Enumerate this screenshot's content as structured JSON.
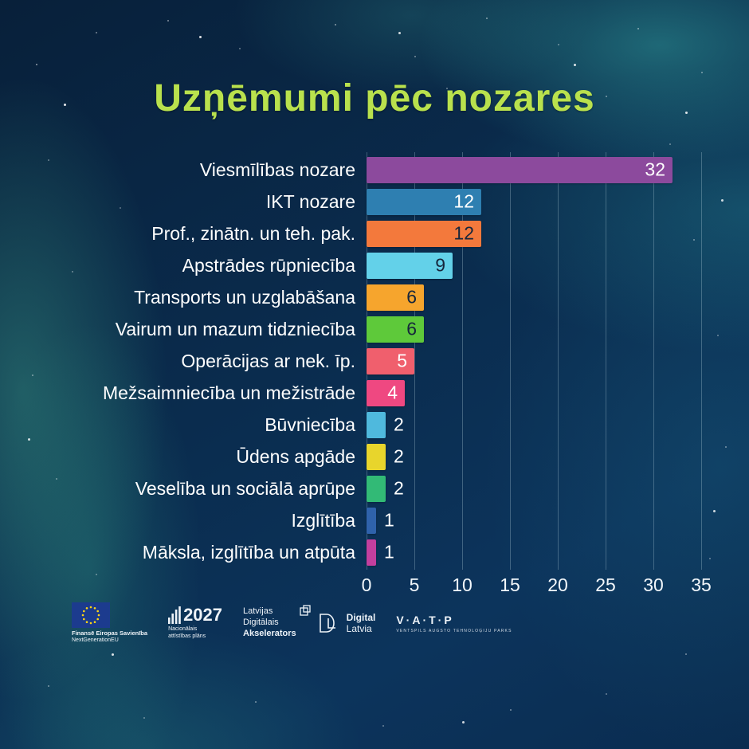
{
  "page": {
    "title": "Uzņēmumi pēc nozares"
  },
  "theme": {
    "background": "#0a2c4e",
    "title_color": "#b9e14d",
    "label_color": "#ffffff",
    "gridline_color": "rgba(190,215,225,0.30)"
  },
  "chart_data": {
    "type": "bar",
    "orientation": "horizontal",
    "title": "Uzņēmumi pēc nozares",
    "categories": [
      "Viesmīlības nozare",
      "IKT nozare",
      "Prof., zinātn. un teh. pak.",
      "Apstrādes rūpniecība",
      "Transports un uzglabāšana",
      "Vairum un mazum tidzniecība",
      "Operācijas ar nek. īp.",
      "Mežsaimniecība un mežistrāde",
      "Būvniecība",
      "Ūdens apgāde",
      "Veselība un sociālā aprūpe",
      "Izglītība",
      "Māksla, izglītība un atpūta"
    ],
    "values": [
      32,
      12,
      12,
      9,
      6,
      6,
      5,
      4,
      2,
      2,
      2,
      1,
      1
    ],
    "bar_colors": [
      "#8c4a9d",
      "#2e7fb1",
      "#f3793c",
      "#63d1e9",
      "#f6a52d",
      "#5ec93a",
      "#f05f6d",
      "#ef4881",
      "#4fb9dd",
      "#e8d52c",
      "#32ba76",
      "#2f62ab",
      "#c33f9e"
    ],
    "value_label_colors": [
      "#ffffff",
      "#ffffff",
      "#16263c",
      "#16263c",
      "#16263c",
      "#16263c",
      "#ffffff",
      "#ffffff",
      "#ffffff",
      "#ffffff",
      "#ffffff",
      "#ffffff",
      "#ffffff"
    ],
    "xlabel": "",
    "ylabel": "",
    "xlim": [
      0,
      35
    ],
    "x_ticks": [
      0,
      5,
      10,
      15,
      20,
      25,
      30,
      35
    ],
    "grid": true,
    "legend": false
  },
  "footer": {
    "eu": {
      "line1": "Finansē",
      "line2": "Eiropas Savienība",
      "line3": "NextGenerationEU"
    },
    "nap": {
      "year": "2027",
      "line1": "Nacionālais",
      "line2": "attīstības plāns"
    },
    "lda": {
      "line1": "Latvijas",
      "line2": "Digitālais",
      "line3": "Akselerators"
    },
    "dl": {
      "line1": "Digital",
      "line2": "Latvia"
    },
    "vatp": {
      "title": "V·A·T·P",
      "subtitle": "VENTSPILS AUGSTO TEHNOLOĢIJU PARKS"
    }
  }
}
